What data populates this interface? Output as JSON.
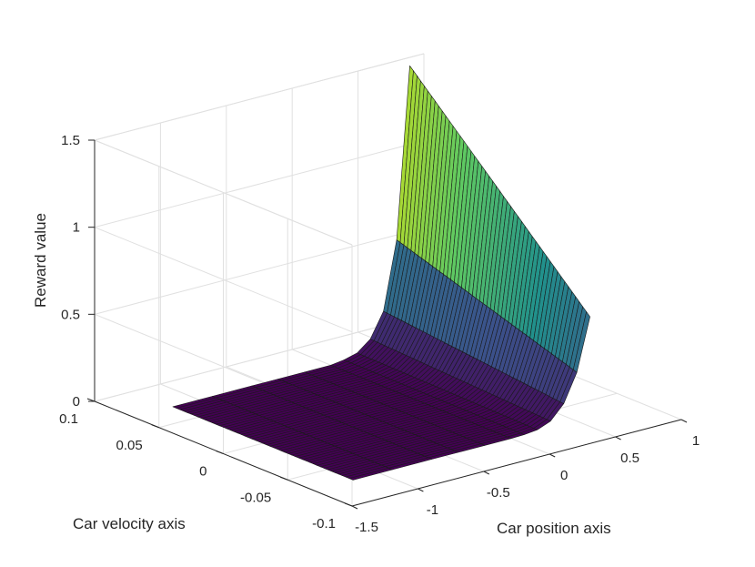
{
  "chart_data": {
    "type": "surface",
    "title": "",
    "xlabel": "Car position axis",
    "ylabel": "Car velocity axis",
    "zlabel": "Reward value",
    "xlim": [
      -1.5,
      1
    ],
    "ylim": [
      -0.1,
      0.1
    ],
    "zlim": [
      0,
      1.5
    ],
    "x_ticks": [
      {
        "value": -1.5,
        "label": "-1.5"
      },
      {
        "value": -1,
        "label": "-1"
      },
      {
        "value": -0.5,
        "label": "-0.5"
      },
      {
        "value": 0,
        "label": "0"
      },
      {
        "value": 0.5,
        "label": "0.5"
      },
      {
        "value": 1,
        "label": "1"
      }
    ],
    "y_ticks": [
      {
        "value": -0.1,
        "label": "-0.1"
      },
      {
        "value": -0.05,
        "label": "-0.05"
      },
      {
        "value": 0,
        "label": "0"
      },
      {
        "value": 0.05,
        "label": "0.05"
      },
      {
        "value": 0.1,
        "label": "0.1"
      }
    ],
    "z_ticks": [
      {
        "value": 0,
        "label": "0"
      },
      {
        "value": 0.5,
        "label": "0.5"
      },
      {
        "value": 1,
        "label": "1"
      },
      {
        "value": 1.5,
        "label": "1.5"
      }
    ],
    "surface_x_range": [
      -1.2,
      0.6
    ],
    "surface_y_range": [
      -0.07,
      0.07
    ],
    "surface_y_count": 51,
    "surface_x": [
      -1.2,
      -0.9,
      -0.6,
      -0.4,
      -0.2,
      0.0,
      0.1,
      0.2,
      0.3,
      0.4,
      0.5,
      0.6
    ],
    "reward_at_vmin": [
      0.0,
      0.0,
      0.0,
      0.0,
      0.0,
      0.0,
      0.002,
      0.01,
      0.04,
      0.12,
      0.28,
      0.58
    ],
    "reward_at_vmax": [
      0.0,
      0.0,
      0.0,
      0.0,
      0.0,
      0.0,
      0.01,
      0.03,
      0.09,
      0.23,
      0.62,
      1.6
    ],
    "colormap": [
      "#440154",
      "#3b528b",
      "#21918c",
      "#5ec962",
      "#c8e020",
      "#fde725"
    ],
    "grid": true
  }
}
